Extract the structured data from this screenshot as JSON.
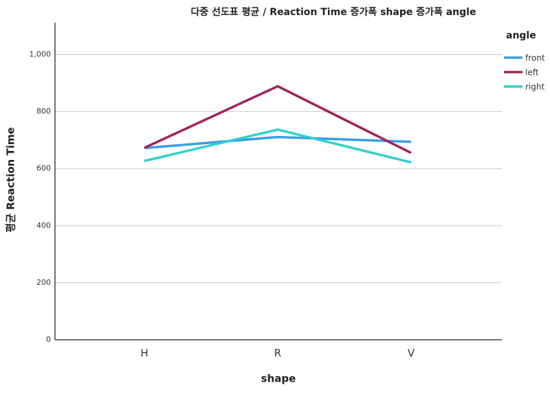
{
  "chart_data": {
    "type": "line",
    "title": "다중 선도표 평균 / Reaction Time 증가폭 shape 증가폭 angle",
    "x_label": "shape",
    "y_label": "평균 Reaction Time",
    "categories": [
      "H",
      "R",
      "V"
    ],
    "legend_title": "angle",
    "series": [
      {
        "name": "front",
        "color": "#3a9ee8",
        "values": [
          672,
          711,
          694
        ]
      },
      {
        "name": "left",
        "color": "#a0235b",
        "values": [
          673,
          889,
          655
        ]
      },
      {
        "name": "right",
        "color": "#30d0cc",
        "values": [
          627,
          737,
          622
        ]
      }
    ],
    "ylim": [
      0,
      1112
    ],
    "yticks": [
      0,
      200,
      400,
      600,
      800,
      {
        "value": 1000,
        "label": "1,000"
      }
    ],
    "grid": true,
    "legend_position": "right"
  }
}
